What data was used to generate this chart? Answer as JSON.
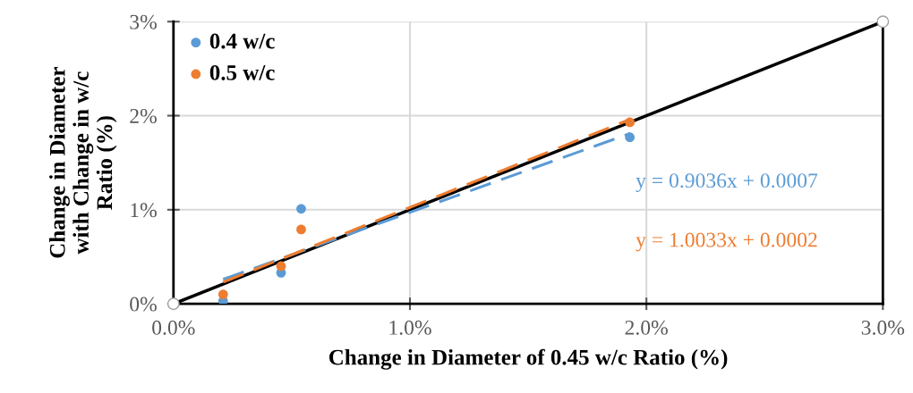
{
  "chart_data": {
    "type": "scatter",
    "xlabel": "Change in Diameter of 0.45 w/c Ratio (%)",
    "ylabel": "Change in Diameter\nwith Change in w/c\nRatio (%)",
    "series": [
      {
        "name": "0.4 w/c",
        "color": "#5b9bd5",
        "x": [
          0.21,
          0.455,
          0.54,
          1.93
        ],
        "values": [
          0.03,
          0.33,
          1.01,
          1.77
        ]
      },
      {
        "name": "0.5 w/c",
        "color": "#ed7d31",
        "x": [
          0.21,
          0.455,
          0.54,
          1.93
        ],
        "values": [
          0.1,
          0.4,
          0.79,
          1.93
        ]
      },
      {
        "type": "line",
        "color": "#000000",
        "marker": "circle",
        "line_style": "solid",
        "x": [
          0,
          3
        ],
        "values": [
          0,
          3
        ]
      },
      {
        "type": "line",
        "color": "#5b9bd5",
        "marker": "none",
        "line_style": "dashed",
        "x": [
          0.21,
          1.93
        ],
        "values": [
          0.26,
          1.81
        ]
      },
      {
        "type": "line",
        "color": "#ed7d31",
        "marker": "none",
        "line_style": "dashed",
        "x": [
          0.21,
          1.93
        ],
        "values": [
          0.23,
          1.96
        ]
      }
    ],
    "annotations": [
      "y = 0.9036x + 0.0007",
      "y = 1.0033x + 0.0002"
    ],
    "xlim": [
      0,
      3
    ],
    "ylim": [
      0,
      3
    ],
    "xticks": [
      {
        "value": 0,
        "label": "0.0%"
      },
      {
        "value": 1,
        "label": "1.0%"
      },
      {
        "value": 2,
        "label": "2.0%"
      },
      {
        "value": 3,
        "label": "3.0%"
      }
    ],
    "yticks": [
      {
        "value": 0,
        "label": "0%"
      },
      {
        "value": 1,
        "label": "1%"
      },
      {
        "value": 2,
        "label": "2%"
      },
      {
        "value": 3,
        "label": "3%"
      }
    ],
    "grid": true,
    "legend": "top left",
    "marker": "circle"
  }
}
